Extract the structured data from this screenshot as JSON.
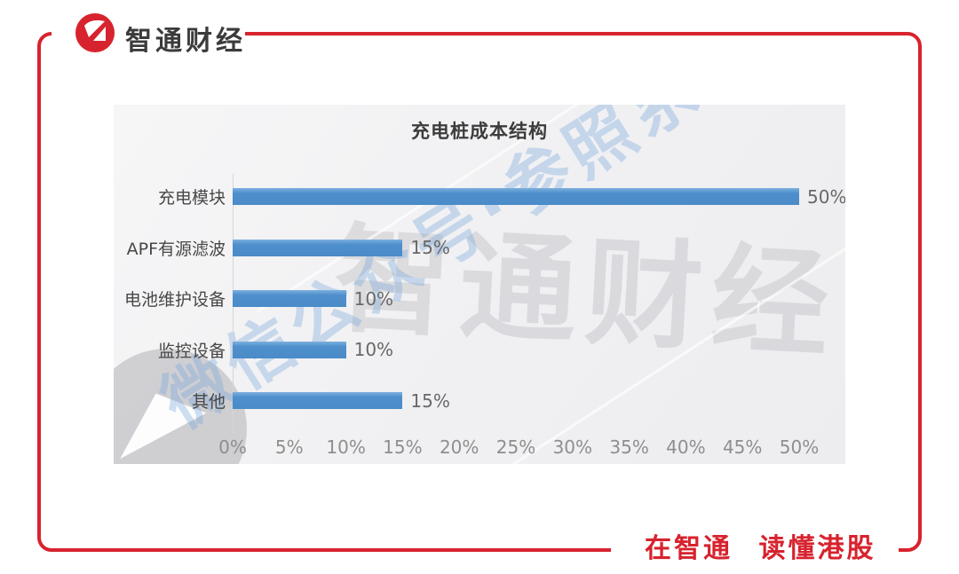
{
  "brand": {
    "logo_text": "智通财经",
    "logo_glyph": "Z-mark",
    "slogan": "在智通 读懂港股",
    "red": "#d7232e"
  },
  "chart_data": {
    "type": "bar",
    "orientation": "horizontal",
    "title": "充电桩成本结构",
    "categories": [
      "充电模块",
      "APF有源滤波",
      "电池维护设备",
      "监控设备",
      "其他"
    ],
    "values": [
      50,
      15,
      10,
      10,
      15
    ],
    "value_labels": [
      "50%",
      "15%",
      "10%",
      "10%",
      "15%"
    ],
    "x_ticks": [
      "0%",
      "5%",
      "10%",
      "15%",
      "20%",
      "25%",
      "30%",
      "35%",
      "40%",
      "45%",
      "50%"
    ],
    "xlim": [
      0,
      50
    ],
    "x_tick_step": 5,
    "grid": false,
    "legend": null,
    "bar_color": "#4e8fcc",
    "watermarks": {
      "gray_text": "智通财经",
      "blue_text": "微信公众号·参照系"
    }
  }
}
